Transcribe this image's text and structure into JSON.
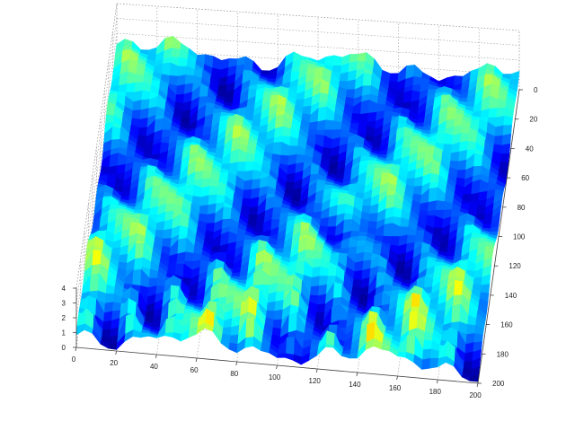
{
  "chart_data": {
    "type": "surface",
    "title": "",
    "xlabel": "",
    "ylabel": "",
    "zlabel": "",
    "xlim": [
      0,
      200
    ],
    "ylim": [
      0,
      200
    ],
    "zlim": [
      0,
      4
    ],
    "x_ticks": [
      0,
      20,
      40,
      60,
      80,
      100,
      120,
      140,
      160,
      180,
      200
    ],
    "y_ticks": [
      0,
      20,
      40,
      60,
      80,
      100,
      120,
      140,
      160,
      180,
      200
    ],
    "z_ticks": [
      0,
      1,
      2,
      3,
      4
    ],
    "colormap": "jet",
    "grid": true,
    "legend": "none",
    "surface_description_values": {
      "pattern": "periodic ridges",
      "ridge_period_x": 20,
      "ridge_period_y": 12,
      "z_range": [
        0,
        4
      ]
    }
  }
}
